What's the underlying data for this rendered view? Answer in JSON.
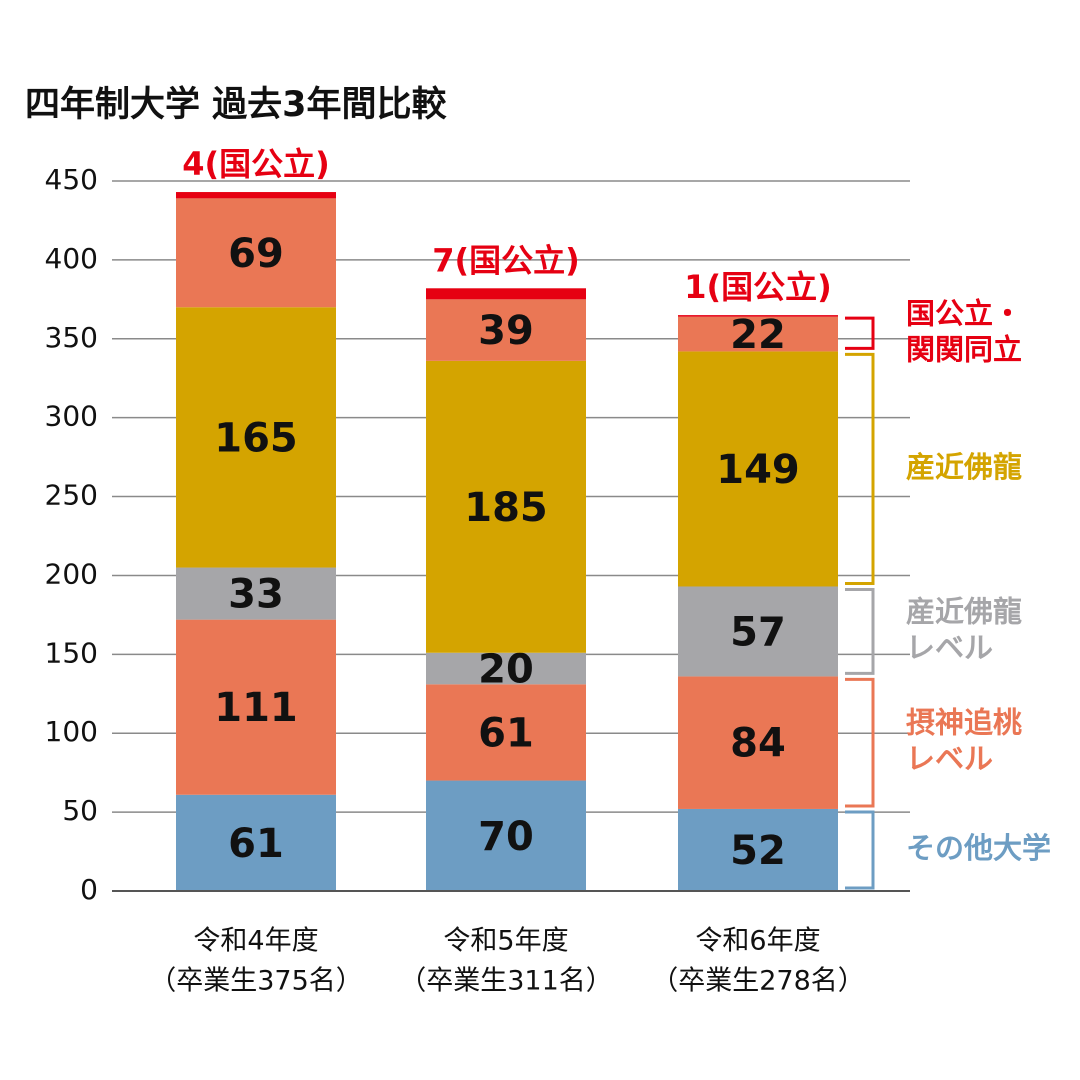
{
  "chart_data": {
    "type": "stacked_bar",
    "title": "四年制大学 過去3年間比較",
    "categories": [
      [
        "令和4年度",
        "（卒業生375名）"
      ],
      [
        "令和5年度",
        "（卒業生311名）"
      ],
      [
        "令和6年度",
        "（卒業生278名）"
      ]
    ],
    "series": [
      {
        "name": [
          "その他大学"
        ],
        "color": "#6d9dc3",
        "values": [
          61,
          70,
          52
        ]
      },
      {
        "name": [
          "摂神追桃",
          "レベル"
        ],
        "color": "#ea7755",
        "values": [
          111,
          61,
          84
        ]
      },
      {
        "name": [
          "産近佛龍",
          "レベル"
        ],
        "color": "#a6a6a9",
        "values": [
          33,
          20,
          57
        ]
      },
      {
        "name": [
          "産近佛龍"
        ],
        "color": "#d4a400",
        "values": [
          165,
          185,
          149
        ]
      },
      {
        "name": [
          "国公立・",
          "関関同立"
        ],
        "color": "#ea7755",
        "values": [
          69,
          39,
          22
        ]
      },
      {
        "color": "#e60012",
        "values": [
          4,
          7,
          1
        ],
        "value_labels": [
          "4(国公立)",
          "7(国公立)",
          "1(国公立)"
        ]
      }
    ],
    "ylim": [
      0,
      450
    ],
    "yticks": [
      0,
      50,
      100,
      150,
      200,
      250,
      300,
      350,
      400,
      450
    ],
    "grid": true
  }
}
